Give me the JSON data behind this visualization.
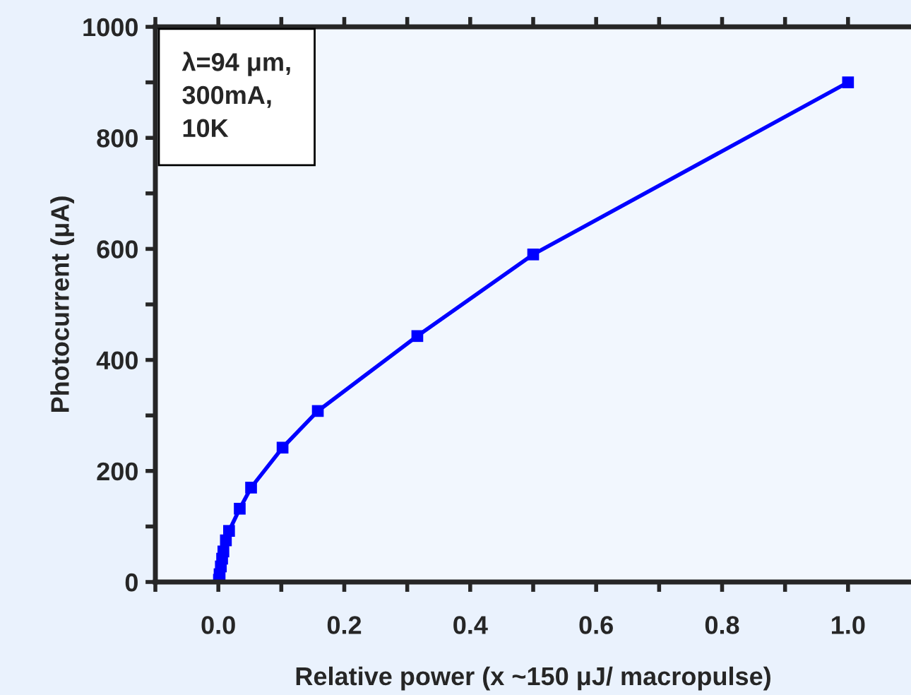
{
  "chart_data": {
    "type": "line",
    "xlabel": "Relative power (x ~150 μJ/ macropulse)",
    "ylabel": "Photocurrent (μA)",
    "annotations": [
      "λ=94 μm,\n300mA,\n10K"
    ],
    "series": [
      {
        "color": "#0000ff",
        "x": [
          0.001,
          0.002,
          0.004,
          0.006,
          0.008,
          0.012,
          0.017,
          0.034,
          0.052,
          0.102,
          0.158,
          0.316,
          0.5,
          1.0
        ],
        "values": [
          4,
          14,
          28,
          42,
          55,
          75,
          92,
          132,
          170,
          242,
          308,
          443,
          590,
          900
        ]
      }
    ],
    "marker": "square",
    "line_style": "solid",
    "grid": false,
    "legend": false,
    "xlim": [
      -0.1,
      1.1
    ],
    "ylim": [
      0,
      1000
    ],
    "xticks": [
      {
        "value": -0.1,
        "label": null
      },
      {
        "value": 0,
        "label": "0.0"
      },
      {
        "value": 0.1,
        "label": null
      },
      0.2,
      {
        "value": 0.3,
        "label": null
      },
      0.4,
      {
        "value": 0.5,
        "label": null
      },
      0.6,
      {
        "value": 0.7,
        "label": null
      },
      0.8,
      {
        "value": 0.9,
        "label": null
      },
      {
        "value": 1,
        "label": "1.0"
      }
    ],
    "yticks": [
      0,
      {
        "value": 100,
        "label": null
      },
      200,
      {
        "value": 300,
        "label": null
      },
      400,
      {
        "value": 500,
        "label": null
      },
      600,
      {
        "value": 700,
        "label": null
      },
      800,
      {
        "value": 900,
        "label": null
      },
      1000
    ]
  }
}
